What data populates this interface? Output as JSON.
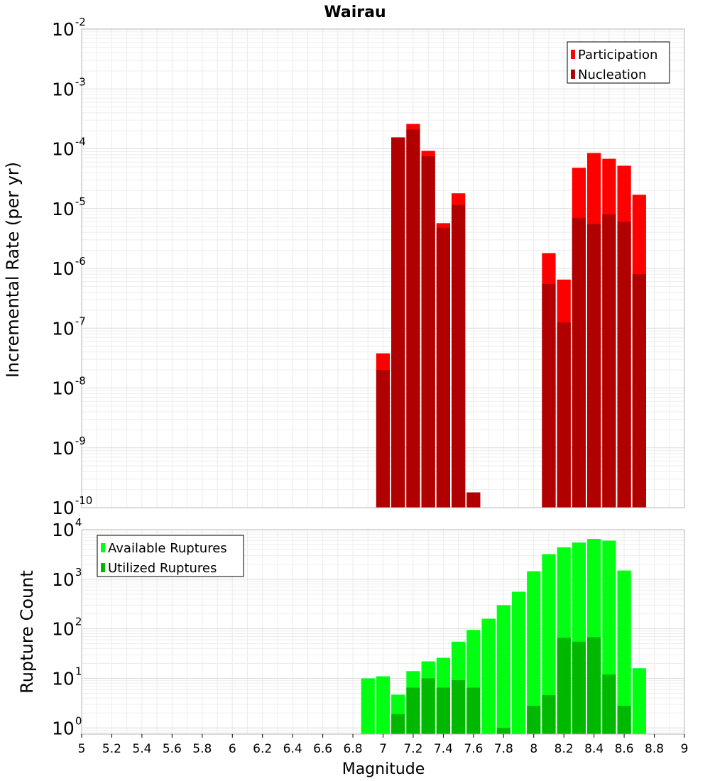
{
  "chart_data": [
    {
      "type": "bar",
      "title": "Wairau",
      "ylabel": "Incremental Rate (per yr)",
      "yscale": "log",
      "ylim": [
        1e-10,
        0.01
      ],
      "xlim": [
        5,
        9
      ],
      "bin_width": 0.1,
      "grid": true,
      "legend": "top-right",
      "x": [
        7.0,
        7.1,
        7.2,
        7.3,
        7.4,
        7.5,
        7.6,
        7.9,
        8.1,
        8.2,
        8.3,
        8.4,
        8.5,
        8.6,
        8.7
      ],
      "series": [
        {
          "name": "Participation",
          "color": "#ff0000",
          "values": [
            3.8e-08,
            0.000155,
            0.00026,
            9.2e-05,
            5.7e-06,
            1.8e-05,
            null,
            null,
            1.8e-06,
            6.5e-07,
            4.8e-05,
            8.5e-05,
            6.8e-05,
            5.2e-05,
            1.7e-05
          ]
        },
        {
          "name": "Nucleation",
          "color": "#b00000",
          "values": [
            2e-08,
            0.000155,
            0.00021,
            7.5e-05,
            4.8e-06,
            1.15e-05,
            1.8e-10,
            null,
            5.5e-07,
            1.25e-07,
            7e-06,
            5.5e-06,
            8e-06,
            6e-06,
            8e-07
          ]
        }
      ]
    },
    {
      "type": "bar",
      "ylabel": "Rupture Count",
      "xlabel": "Magnitude",
      "yscale": "log",
      "ylim": [
        0.75,
        10000
      ],
      "xlim": [
        5,
        9
      ],
      "bin_width": 0.1,
      "grid": true,
      "legend": "top-left",
      "x": [
        6.9,
        7.0,
        7.1,
        7.2,
        7.3,
        7.4,
        7.5,
        7.6,
        7.7,
        7.8,
        7.9,
        8.0,
        8.1,
        8.2,
        8.3,
        8.4,
        8.5,
        8.6,
        8.7,
        8.8
      ],
      "series": [
        {
          "name": "Available Ruptures",
          "color": "#00ff11",
          "values": [
            10,
            11,
            4.7,
            14,
            22,
            26,
            55,
            95,
            160,
            300,
            560,
            1450,
            3200,
            4400,
            5500,
            6500,
            6000,
            1500,
            16,
            null
          ]
        },
        {
          "name": "Utilized Ruptures",
          "color": "#00b800",
          "values": [
            null,
            null,
            1.9,
            6.5,
            10,
            6.5,
            9.2,
            6.5,
            null,
            1,
            null,
            2.8,
            4.6,
            66,
            55,
            68,
            12,
            2.8,
            null,
            null
          ]
        }
      ]
    }
  ],
  "x_ticks": [
    "5",
    "5.2",
    "5.4",
    "5.6",
    "5.8",
    "6",
    "6.2",
    "6.4",
    "6.6",
    "6.8",
    "7",
    "7.2",
    "7.4",
    "7.6",
    "7.8",
    "8",
    "8.2",
    "8.4",
    "8.6",
    "8.8",
    "9"
  ],
  "top_y_ticks": [
    {
      "base": "10",
      "exp": "-2",
      "value": 0.01
    },
    {
      "base": "10",
      "exp": "-3",
      "value": 0.001
    },
    {
      "base": "10",
      "exp": "-4",
      "value": 0.0001
    },
    {
      "base": "10",
      "exp": "-5",
      "value": 1e-05
    },
    {
      "base": "10",
      "exp": "-6",
      "value": 1e-06
    },
    {
      "base": "10",
      "exp": "-7",
      "value": 1e-07
    },
    {
      "base": "10",
      "exp": "-8",
      "value": 1e-08
    },
    {
      "base": "10",
      "exp": "-9",
      "value": 1e-09
    },
    {
      "base": "10",
      "exp": "-10",
      "value": 1e-10
    }
  ],
  "bottom_y_ticks": [
    {
      "base": "10",
      "exp": "4",
      "value": 10000
    },
    {
      "base": "10",
      "exp": "3",
      "value": 1000
    },
    {
      "base": "10",
      "exp": "2",
      "value": 100
    },
    {
      "base": "10",
      "exp": "1",
      "value": 10
    },
    {
      "base": "10",
      "exp": "0",
      "value": 1
    }
  ]
}
